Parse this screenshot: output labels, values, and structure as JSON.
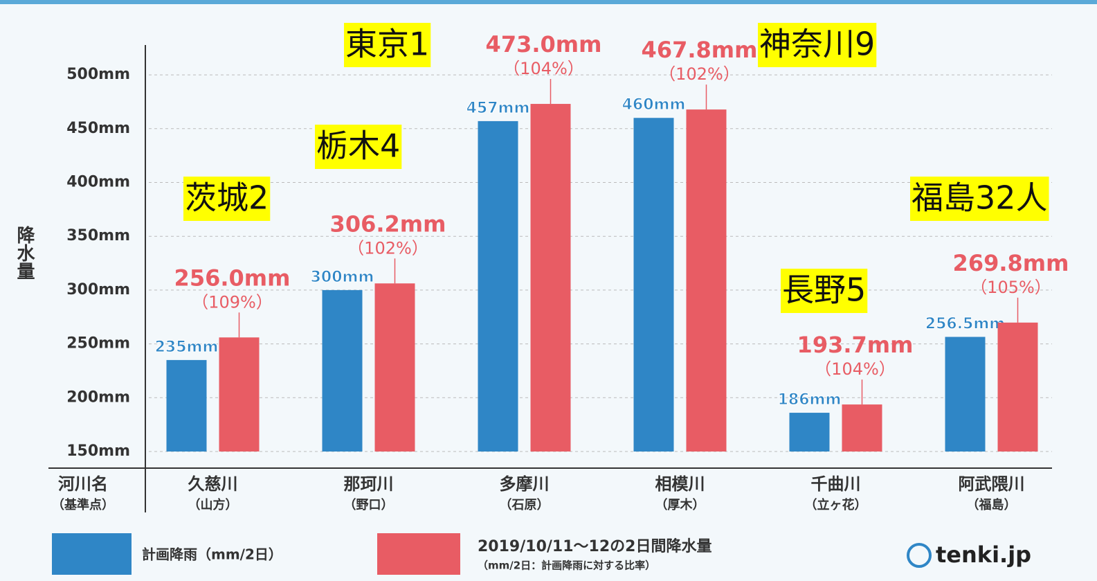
{
  "chart_data": {
    "type": "bar",
    "y_label": "降水量",
    "x_label": "河川名",
    "x_sublabel": "（基準点）",
    "categories": [
      "久慈川",
      "那珂川",
      "多摩川",
      "相模川",
      "千曲川",
      "阿武隈川"
    ],
    "category_sublabels": [
      "（山方）",
      "（野口）",
      "（石原）",
      "（厚木）",
      "（立ヶ花）",
      "（福島）"
    ],
    "series": [
      {
        "name": "計画降雨（mm/2日）",
        "color": "#2f86c6",
        "values": [
          235,
          300,
          457,
          460,
          186,
          256.5
        ],
        "value_labels": [
          "235mm",
          "300mm",
          "457mm",
          "460mm",
          "186mm",
          "256.5mm"
        ]
      },
      {
        "name": "2019/10/11～12の2日間降水量",
        "subname": "（mm/2日：計画降雨に対する比率）",
        "color": "#e85c64",
        "values": [
          256.0,
          306.2,
          473.0,
          467.8,
          193.7,
          269.8
        ],
        "value_labels": [
          "256.0mm",
          "306.2mm",
          "473.0mm",
          "467.8mm",
          "193.7mm",
          "269.8mm"
        ],
        "ratio_labels": [
          "（109%）",
          "（102%）",
          "（104%）",
          "（102%）",
          "（104%）",
          "（105%）"
        ]
      }
    ],
    "ylim": [
      150,
      520
    ],
    "yticks": [
      {
        "value": 150,
        "label": "150mm"
      },
      {
        "value": 200,
        "label": "200mm"
      },
      {
        "value": 250,
        "label": "250mm"
      },
      {
        "value": 300,
        "label": "300mm"
      },
      {
        "value": 350,
        "label": "350mm"
      },
      {
        "value": 400,
        "label": "400mm"
      },
      {
        "value": 450,
        "label": "450mm"
      },
      {
        "value": 500,
        "label": "500mm"
      }
    ],
    "grid": true,
    "annotations": [
      "茨城2",
      "栃木4",
      "東京1",
      "神奈川9",
      "長野5",
      "福島32人"
    ],
    "logo": "tenki.jp"
  }
}
